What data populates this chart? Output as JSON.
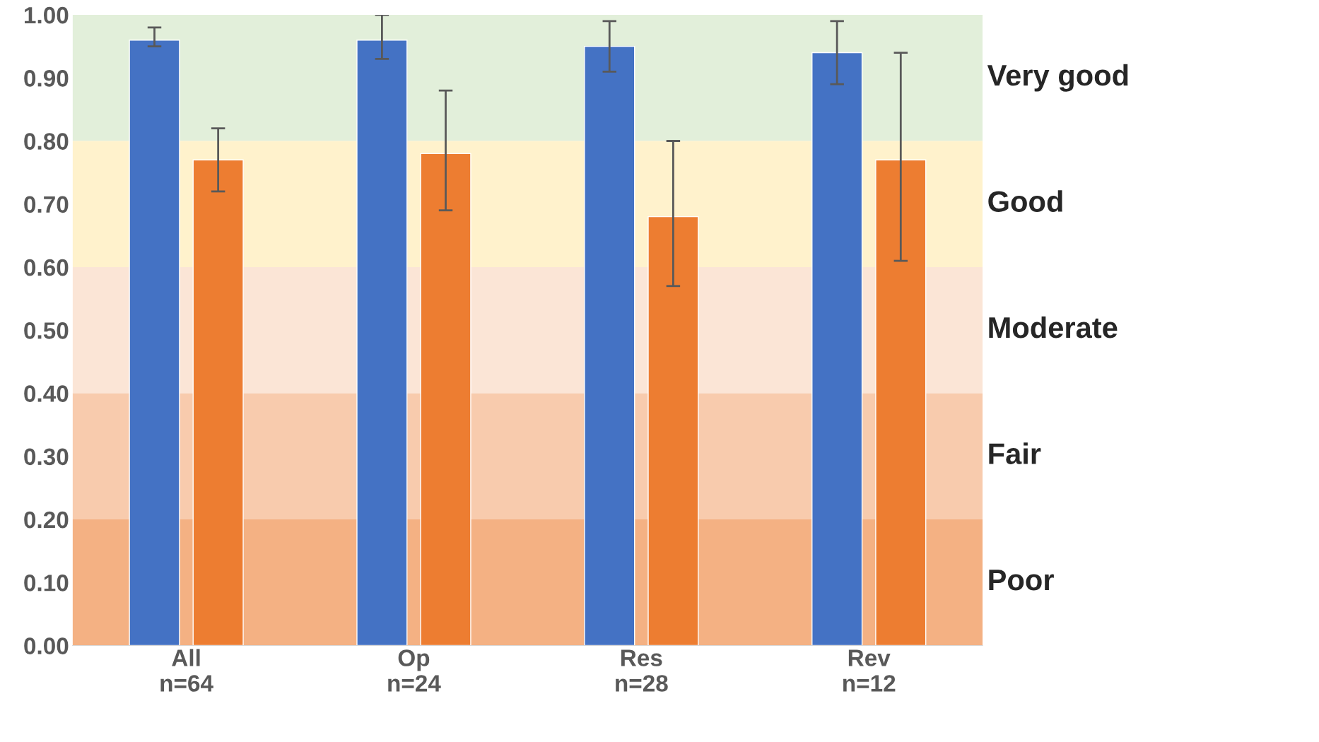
{
  "chart_data": {
    "type": "bar",
    "categories": [
      "All\nn=64",
      "Op\nn=24",
      "Res\nn=28",
      "Rev\nn=12"
    ],
    "series": [
      {
        "color": "#4472c4",
        "values": [
          0.96,
          0.96,
          0.95,
          0.94
        ],
        "errors": [
          [
            0.95,
            0.98
          ],
          [
            0.93,
            1.0
          ],
          [
            0.91,
            0.99
          ],
          [
            0.89,
            0.99
          ]
        ]
      },
      {
        "color": "#ed7d31",
        "values": [
          0.77,
          0.78,
          0.68,
          0.77
        ],
        "errors": [
          [
            0.72,
            0.82
          ],
          [
            0.69,
            0.88
          ],
          [
            0.57,
            0.8
          ],
          [
            0.61,
            0.94
          ]
        ]
      }
    ],
    "ylim": [
      0,
      1
    ],
    "yticks": [
      {
        "value": 0,
        "label": "0.00"
      },
      {
        "value": 0.1,
        "label": "0.10"
      },
      {
        "value": 0.2,
        "label": "0.20"
      },
      {
        "value": 0.3,
        "label": "0.30"
      },
      {
        "value": 0.4,
        "label": "0.40"
      },
      {
        "value": 0.5,
        "label": "0.50"
      },
      {
        "value": 0.6,
        "label": "0.60"
      },
      {
        "value": 0.7,
        "label": "0.70"
      },
      {
        "value": 0.8,
        "label": "0.80"
      },
      {
        "value": 0.9,
        "label": "0.90"
      },
      {
        "value": 1.0,
        "label": "1.00"
      }
    ],
    "bands": [
      {
        "axis": "y",
        "from": 0.8,
        "to": 1.0,
        "label": "Very good",
        "color": "#e2efda"
      },
      {
        "axis": "y",
        "from": 0.6,
        "to": 0.8,
        "label": "Good",
        "color": "#fff2cc"
      },
      {
        "axis": "y",
        "from": 0.4,
        "to": 0.6,
        "label": "Moderate",
        "color": "#fbe5d6"
      },
      {
        "axis": "y",
        "from": 0.2,
        "to": 0.4,
        "label": "Fair",
        "color": "#f8cbad"
      },
      {
        "axis": "y",
        "from": 0.0,
        "to": 0.2,
        "label": "Poor",
        "color": "#f4b183"
      }
    ],
    "grid": false
  }
}
